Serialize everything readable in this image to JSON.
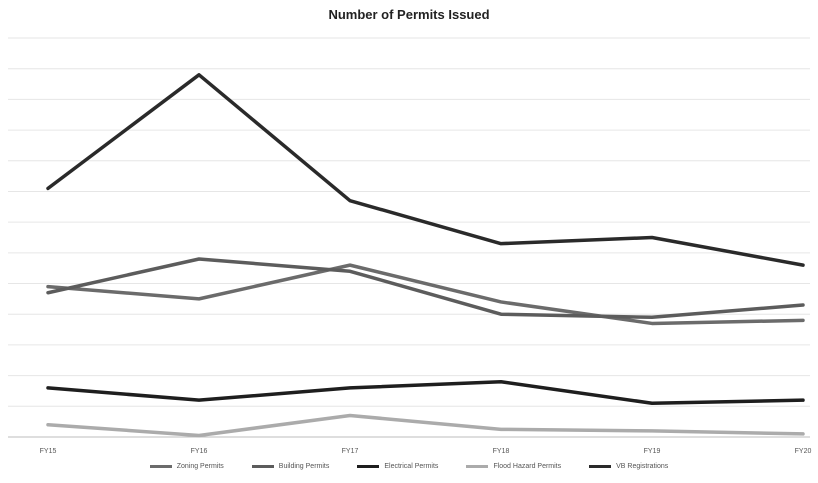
{
  "chart_data": {
    "type": "line",
    "title": "Number of Permits Issued",
    "xlabel": "",
    "ylabel": "",
    "grid": true,
    "legend_position": "bottom",
    "categories": [
      "FY15",
      "FY16",
      "FY17",
      "FY18",
      "FY19",
      "FY20"
    ],
    "ylim": [
      0,
      1300
    ],
    "series": [
      {
        "name": "Zoning Permits",
        "color": "#6b6b6b",
        "values": [
          490,
          450,
          560,
          440,
          370,
          380
        ]
      },
      {
        "name": "Building Permits",
        "color": "#5c5c5c",
        "values": [
          470,
          580,
          540,
          400,
          390,
          430
        ]
      },
      {
        "name": "Electrical Permits",
        "color": "#1e1e1e",
        "values": [
          160,
          120,
          160,
          180,
          110,
          120
        ]
      },
      {
        "name": "Flood Hazard Permits",
        "color": "#ababab",
        "values": [
          40,
          5,
          70,
          25,
          20,
          10
        ]
      },
      {
        "name": "VB Registrations",
        "color": "#2a2a2a",
        "values": [
          810,
          1180,
          770,
          630,
          650,
          560
        ]
      }
    ]
  }
}
